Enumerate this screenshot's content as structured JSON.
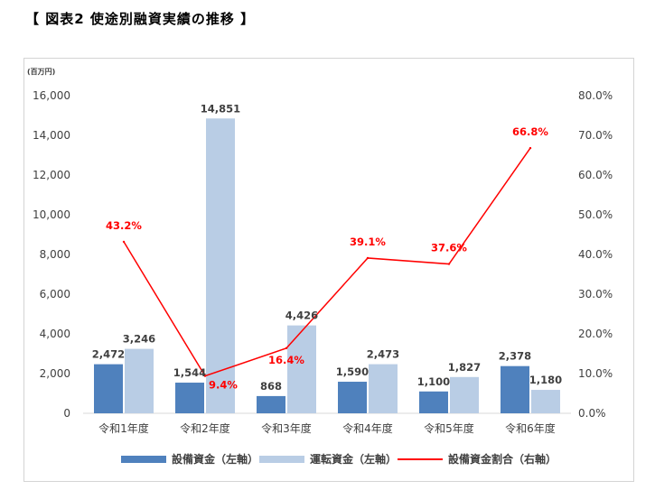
{
  "page": {
    "heading": "【 図表2 使途別融資実績の推移 】"
  },
  "chart_data": {
    "type": "bar",
    "title": "",
    "unit_label": "(百万円)",
    "categories": [
      "令和1年度",
      "令和2年度",
      "令和3年度",
      "令和4年度",
      "令和5年度",
      "令和6年度"
    ],
    "series": [
      {
        "name": "設備資金（左軸）",
        "type": "bar",
        "axis": "left",
        "color": "#4f81bd",
        "values": [
          2472,
          1544,
          868,
          1590,
          1100,
          2378
        ],
        "labels": [
          "2,472",
          "1,544",
          "868",
          "1,590",
          "1,100",
          "2,378"
        ]
      },
      {
        "name": "運転資金（左軸）",
        "type": "bar",
        "axis": "left",
        "color": "#b9cde5",
        "values": [
          3246,
          14851,
          4426,
          2473,
          1827,
          1180
        ],
        "labels": [
          "3,246",
          "14,851",
          "4,426",
          "2,473",
          "1,827",
          "1,180"
        ]
      },
      {
        "name": "設備資金割合（右軸）",
        "type": "line",
        "axis": "right",
        "color": "#ff0000",
        "values": [
          43.2,
          9.4,
          16.4,
          39.1,
          37.6,
          66.8
        ],
        "labels": [
          "43.2%",
          "9.4%",
          "16.4%",
          "39.1%",
          "37.6%",
          "66.8%"
        ]
      }
    ],
    "y_left": {
      "range": [
        0,
        16000
      ],
      "ticks": [
        0,
        2000,
        4000,
        6000,
        8000,
        10000,
        12000,
        14000,
        16000
      ],
      "tick_labels": [
        "0",
        "2,000",
        "4,000",
        "6,000",
        "8,000",
        "10,000",
        "12,000",
        "14,000",
        "16,000"
      ]
    },
    "y_right": {
      "range": [
        0,
        80
      ],
      "ticks": [
        0,
        10,
        20,
        30,
        40,
        50,
        60,
        70,
        80
      ],
      "tick_labels": [
        "0.0%",
        "10.0%",
        "20.0%",
        "30.0%",
        "40.0%",
        "50.0%",
        "60.0%",
        "70.0%",
        "80.0%"
      ]
    },
    "grid": false,
    "legend_position": "bottom"
  }
}
